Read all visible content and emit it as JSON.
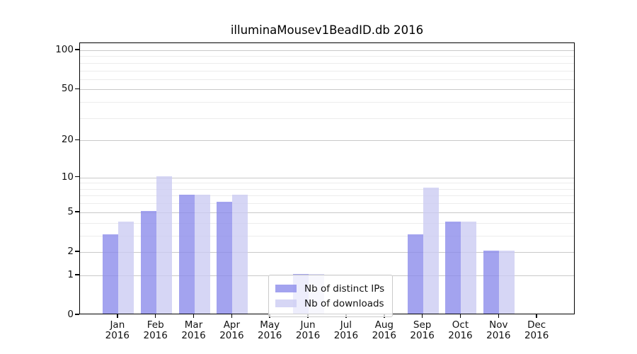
{
  "chart_data": {
    "type": "bar",
    "title": "illuminaMousev1BeadID.db 2016",
    "categories": [
      "Jan",
      "Feb",
      "Mar",
      "Apr",
      "May",
      "Jun",
      "Jul",
      "Aug",
      "Sep",
      "Oct",
      "Nov",
      "Dec"
    ],
    "year": "2016",
    "series": [
      {
        "name": "Nb of distinct IPs",
        "color": "#8c8ceb",
        "values": [
          3,
          5,
          7,
          6,
          0,
          1,
          0,
          0,
          3,
          4,
          2,
          0
        ]
      },
      {
        "name": "Nb of downloads",
        "color": "#ccccf2",
        "values": [
          4,
          10,
          7,
          7,
          0,
          1,
          0,
          0,
          8,
          4,
          2,
          0
        ]
      }
    ],
    "fill_alpha": 0.8,
    "yscale": "log1p",
    "ylim": [
      0,
      100
    ],
    "yticks": [
      0,
      1,
      2,
      5,
      10,
      20,
      50,
      100
    ],
    "minor_yticks": [
      3,
      4,
      6,
      7,
      8,
      9,
      30,
      40,
      60,
      70,
      80,
      90
    ],
    "grid": "horizontal",
    "legend_position": "bottom-center-inside",
    "colors": {
      "major_grid": "#c9c9c9",
      "minor_grid": "#ececec",
      "axis": "#000000",
      "background": "#ffffff"
    }
  }
}
